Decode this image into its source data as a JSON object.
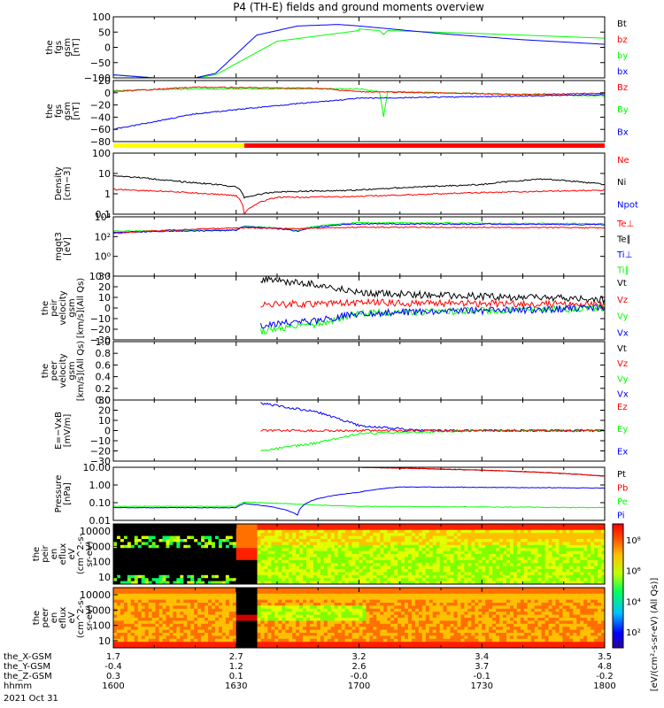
{
  "title": "P4 (TH-E) fields and ground moments overview",
  "colors": {
    "black": "#000000",
    "red": "#ff0000",
    "green": "#00ff00",
    "blue": "#0000ff",
    "yellow": "#ffff00"
  },
  "chart_data": {
    "type": "line",
    "x_axis": {
      "range": [
        1600,
        1800
      ],
      "ticks": [
        1600,
        1630,
        1700,
        1730,
        1800
      ],
      "rows": [
        {
          "label": "the_X-GSM",
          "values": [
            "1.7",
            "2.7",
            "3.2",
            "3.4",
            "3.5"
          ]
        },
        {
          "label": "the_Y-GSM",
          "values": [
            "-0.4",
            "1.2",
            "2.6",
            "3.7",
            "4.8"
          ]
        },
        {
          "label": "the_Z-GSM",
          "values": [
            "0.3",
            "0.1",
            "-0.0",
            "-0.1",
            "-0.2"
          ]
        },
        {
          "label": "hhmm",
          "values": [
            "1600",
            "1630",
            "1700",
            "1730",
            "1800"
          ]
        }
      ],
      "date": "2021 Oct 31"
    },
    "panels": [
      {
        "id": "fgs-gsm",
        "ylabel": [
          "the",
          "fgs",
          "gsm",
          "[nT]"
        ],
        "scale": "linear",
        "ylim": [
          -100,
          100
        ],
        "ticks": [
          "100",
          "50",
          "0",
          "−50",
          "−100"
        ],
        "legend": [
          {
            "name": "Bt",
            "color": "#000000"
          },
          {
            "name": "bz",
            "color": "#ff0000"
          },
          {
            "name": "by",
            "color": "#00ff00"
          },
          {
            "name": "bx",
            "color": "#0000ff"
          }
        ],
        "series": [
          {
            "name": "by",
            "color": "#00ff00",
            "points": [
              [
                1600,
                -90
              ],
              [
                1610,
                -100
              ],
              [
                1620,
                -100
              ],
              [
                1625,
                -90
              ],
              [
                1640,
                20
              ],
              [
                1660,
                55
              ],
              [
                1700,
                60
              ],
              [
                1705,
                55
              ],
              [
                1706,
                42
              ],
              [
                1707,
                55
              ],
              [
                1730,
                45
              ],
              [
                1800,
                30
              ]
            ]
          },
          {
            "name": "bx",
            "color": "#0000ff",
            "points": [
              [
                1600,
                -90
              ],
              [
                1610,
                -100
              ],
              [
                1620,
                -100
              ],
              [
                1625,
                -85
              ],
              [
                1635,
                40
              ],
              [
                1645,
                70
              ],
              [
                1655,
                75
              ],
              [
                1700,
                70
              ],
              [
                1720,
                45
              ],
              [
                1740,
                25
              ],
              [
                1800,
                10
              ]
            ]
          }
        ]
      },
      {
        "id": "fgs-gsm-2",
        "ylabel": [
          "the",
          "fgs",
          "gsm",
          "[nT]"
        ],
        "scale": "linear",
        "ylim": [
          -90,
          20
        ],
        "ticks": [
          "20",
          "0",
          "−20",
          "−40",
          "−60",
          "−80"
        ],
        "legend": [
          {
            "name": "Bz",
            "color": "#ff0000"
          },
          {
            "name": "By",
            "color": "#00ff00"
          },
          {
            "name": "Bx",
            "color": "#0000ff"
          }
        ],
        "series": [
          {
            "name": "By",
            "color": "#00ff00",
            "points": [
              [
                1600,
                2
              ],
              [
                1620,
                5
              ],
              [
                1660,
                5
              ],
              [
                1705,
                0
              ],
              [
                1706,
                -45
              ],
              [
                1707,
                0
              ],
              [
                1740,
                -5
              ],
              [
                1800,
                -8
              ]
            ]
          },
          {
            "name": "Bz",
            "color": "#ff0000",
            "points": [
              [
                1600,
                0
              ],
              [
                1620,
                8
              ],
              [
                1650,
                6
              ],
              [
                1700,
                0
              ],
              [
                1740,
                -5
              ],
              [
                1800,
                -3
              ]
            ]
          },
          {
            "name": "Bx",
            "color": "#0000ff",
            "points": [
              [
                1600,
                -68
              ],
              [
                1620,
                -40
              ],
              [
                1640,
                -25
              ],
              [
                1700,
                -12
              ],
              [
                1740,
                -8
              ],
              [
                1800,
                -5
              ]
            ]
          }
        ]
      },
      {
        "id": "density",
        "ylabel": [
          "Density",
          "[cm−3]"
        ],
        "scale": "log",
        "ylim": [
          0.05,
          100
        ],
        "ticks": [
          "100",
          "10",
          "1",
          "0.1"
        ],
        "legend": [
          {
            "name": "Ne",
            "color": "#ff0000"
          },
          {
            "name": "Ni",
            "color": "#000000"
          },
          {
            "name": "Npot",
            "color": "#0000ff"
          }
        ],
        "series": [
          {
            "name": "Ni",
            "color": "#000000",
            "points": [
              [
                1600,
                6
              ],
              [
                1615,
                3
              ],
              [
                1630,
                1.5
              ],
              [
                1632,
                0.4
              ],
              [
                1640,
                0.8
              ],
              [
                1700,
                1
              ],
              [
                1730,
                2
              ],
              [
                1745,
                4
              ],
              [
                1800,
                2
              ]
            ]
          },
          {
            "name": "Ne",
            "color": "#ff0000",
            "points": [
              [
                1600,
                1.1
              ],
              [
                1630,
                0.5
              ],
              [
                1632,
                0.05
              ],
              [
                1640,
                0.4
              ],
              [
                1700,
                0.45
              ],
              [
                1800,
                1
              ]
            ]
          }
        ]
      },
      {
        "id": "temperature",
        "ylabel": [
          "mgqt3",
          "[eV]"
        ],
        "scale": "log",
        "ylim": [
          0.001,
          10000
        ],
        "ticks": [
          "10⁴",
          "10²",
          "10⁰",
          "10⁻²"
        ],
        "legend": [
          {
            "name": "Te⊥",
            "color": "#ff0000"
          },
          {
            "name": "Te∥",
            "color": "#000000"
          },
          {
            "name": "Ti⊥",
            "color": "#0000ff"
          },
          {
            "name": "Ti∥",
            "color": "#00ff00"
          }
        ],
        "series": [
          {
            "name": "Ti∥",
            "color": "#00ff00",
            "points": [
              [
                1600,
                200
              ],
              [
                1630,
                300
              ],
              [
                1632,
                800
              ],
              [
                1645,
                250
              ],
              [
                1700,
                2000
              ],
              [
                1800,
                1500
              ]
            ]
          },
          {
            "name": "Ti⊥",
            "color": "#0000ff",
            "points": [
              [
                1600,
                150
              ],
              [
                1630,
                250
              ],
              [
                1632,
                700
              ],
              [
                1645,
                200
              ],
              [
                1700,
                1500
              ],
              [
                1800,
                1200
              ]
            ]
          },
          {
            "name": "Te⊥",
            "color": "#ff0000",
            "points": [
              [
                1600,
                100
              ],
              [
                1632,
                500
              ],
              [
                1645,
                400
              ],
              [
                1700,
                600
              ],
              [
                1800,
                500
              ]
            ]
          }
        ]
      },
      {
        "id": "peir-velocity",
        "ylabel": [
          "the",
          "peir",
          "velocity",
          "gsm",
          "[km/s](All Qs)"
        ],
        "scale": "linear",
        "ylim": [
          -30,
          30
        ],
        "ticks": [
          "30",
          "20",
          "10",
          "0",
          "−10",
          "−20",
          "−30"
        ],
        "legend": [
          {
            "name": "Vt",
            "color": "#000000"
          },
          {
            "name": "Vz",
            "color": "#ff0000"
          },
          {
            "name": "Vy",
            "color": "#00ff00"
          },
          {
            "name": "Vx",
            "color": "#0000ff"
          }
        ],
        "series": [
          {
            "name": "Vt",
            "color": "#000000",
            "points": [
              [
                1636,
                27
              ],
              [
                1650,
                22
              ],
              [
                1700,
                14
              ],
              [
                1730,
                11
              ],
              [
                1800,
                8
              ]
            ]
          },
          {
            "name": "Vz",
            "color": "#ff0000",
            "points": [
              [
                1636,
                3
              ],
              [
                1700,
                5
              ],
              [
                1800,
                3
              ]
            ]
          },
          {
            "name": "Vy",
            "color": "#00ff00",
            "points": [
              [
                1636,
                -22
              ],
              [
                1650,
                -15
              ],
              [
                1700,
                -5
              ],
              [
                1800,
                0
              ]
            ]
          },
          {
            "name": "Vx",
            "color": "#0000ff",
            "points": [
              [
                1636,
                -16
              ],
              [
                1650,
                -12
              ],
              [
                1700,
                -5
              ],
              [
                1800,
                0
              ]
            ]
          }
        ]
      },
      {
        "id": "peer-velocity",
        "ylabel": [
          "the",
          "peer",
          "velocity",
          "gsm",
          "[km/s](All Qs)"
        ],
        "scale": "linear",
        "ylim": [
          0,
          1
        ],
        "ticks": [
          "1.0",
          "0.8",
          "0.6",
          "0.4",
          "0.2",
          "0.0"
        ],
        "legend": [
          {
            "name": "Vt",
            "color": "#000000"
          },
          {
            "name": "Vz",
            "color": "#ff0000"
          },
          {
            "name": "Vy",
            "color": "#00ff00"
          },
          {
            "name": "Vx",
            "color": "#0000ff"
          }
        ],
        "series": []
      },
      {
        "id": "efield",
        "ylabel": [
          "E=−VxB",
          "[mV/m]"
        ],
        "scale": "linear",
        "ylim": [
          -30,
          30
        ],
        "ticks": [
          "30",
          "20",
          "10",
          "0",
          "−10",
          "−20",
          "−30"
        ],
        "legend": [
          {
            "name": "Ez",
            "color": "#ff0000"
          },
          {
            "name": "Ey",
            "color": "#00ff00"
          },
          {
            "name": "Ex",
            "color": "#0000ff"
          }
        ],
        "series": [
          {
            "name": "Ex",
            "color": "#0000ff",
            "points": [
              [
                1636,
                27
              ],
              [
                1650,
                18
              ],
              [
                1700,
                5
              ],
              [
                1715,
                0
              ],
              [
                1800,
                0
              ]
            ]
          },
          {
            "name": "Ey",
            "color": "#00ff00",
            "points": [
              [
                1636,
                -20
              ],
              [
                1650,
                -12
              ],
              [
                1700,
                -3
              ],
              [
                1730,
                0
              ],
              [
                1800,
                0
              ]
            ]
          },
          {
            "name": "Ez",
            "color": "#ff0000",
            "points": [
              [
                1636,
                0
              ],
              [
                1800,
                0
              ]
            ]
          }
        ]
      },
      {
        "id": "pressure",
        "ylabel": [
          "Pressure",
          "[nPa]"
        ],
        "scale": "log",
        "ylim": [
          0.005,
          30
        ],
        "ticks": [
          "10.00",
          "1.00",
          "0.10",
          "0.01"
        ],
        "legend": [
          {
            "name": "Pt",
            "color": "#000000"
          },
          {
            "name": "Pb",
            "color": "#ff0000"
          },
          {
            "name": "Pe",
            "color": "#00ff00"
          },
          {
            "name": "Pi",
            "color": "#0000ff"
          }
        ],
        "series": [
          {
            "name": "Pt",
            "color": "#000000",
            "points": [
              [
                1700,
                30
              ],
              [
                1800,
                7
              ]
            ]
          },
          {
            "name": "Pb",
            "color": "#ff0000",
            "points": [
              [
                1700,
                30
              ],
              [
                1800,
                7
              ]
            ]
          },
          {
            "name": "Pe",
            "color": "#00ff00",
            "points": [
              [
                1600,
                0.05
              ],
              [
                1630,
                0.05
              ],
              [
                1632,
                0.1
              ],
              [
                1650,
                0.06
              ],
              [
                1700,
                0.05
              ],
              [
                1800,
                0.04
              ]
            ]
          },
          {
            "name": "Pi",
            "color": "#0000ff",
            "points": [
              [
                1600,
                0.04
              ],
              [
                1630,
                0.04
              ],
              [
                1632,
                0.08
              ],
              [
                1645,
                0.012
              ],
              [
                1700,
                0.5
              ],
              [
                1710,
                1.2
              ],
              [
                1800,
                1
              ]
            ]
          }
        ]
      },
      {
        "id": "peir-eflux",
        "type": "heatmap",
        "ylabel": [
          "the",
          "peir",
          "en",
          "eflux",
          "eV",
          "(cm^2-s-",
          "sr-eV)"
        ],
        "ylim": [
          10,
          15000
        ],
        "ticks": [
          "10000",
          "1000",
          "100",
          "10"
        ]
      },
      {
        "id": "peer-eflux",
        "type": "heatmap",
        "ylabel": [
          "the",
          "peer",
          "en",
          "eflux",
          "eV",
          "(cm^2-s-",
          "sr-eV)"
        ],
        "ylim": [
          10,
          15000
        ],
        "ticks": [
          "10000",
          "1000",
          "100",
          "10"
        ]
      }
    ],
    "colorbar": {
      "label": "[eV/(cm²-s-sr-eV) (All Qs)]",
      "ticks": [
        "10⁸",
        "10⁶",
        "10⁴",
        "10²"
      ]
    }
  }
}
